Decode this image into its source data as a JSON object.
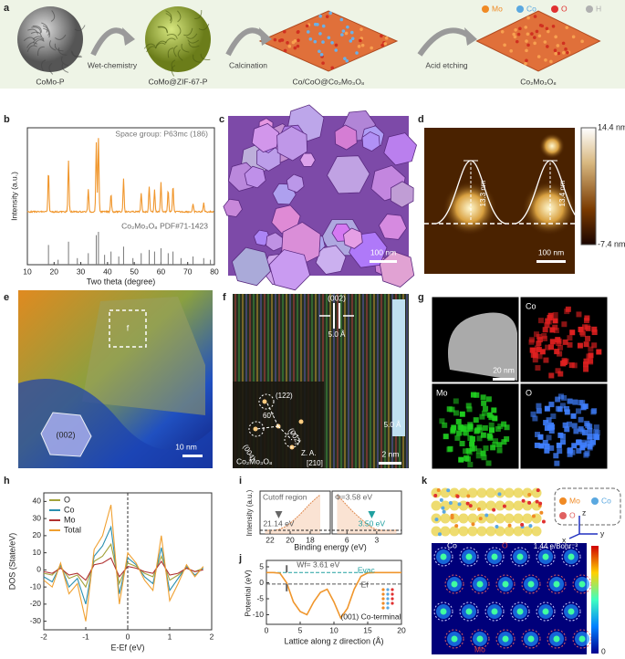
{
  "a": {
    "letter": "a",
    "steps": [
      "CoMo-P",
      "CoMo@ZIF-67-P",
      "Co/CoO@Co₂Mo₃O₈",
      "Co₂Mo₃O₈"
    ],
    "arrows": [
      "Wet-chemistry",
      "Calcination",
      "Acid etching"
    ],
    "legend": [
      {
        "name": "Mo",
        "color": "#f08a24"
      },
      {
        "name": "Co",
        "color": "#5aa8e0"
      },
      {
        "name": "O",
        "color": "#e03030"
      },
      {
        "name": "H",
        "color": "#b0b0b0"
      }
    ]
  },
  "b": {
    "letter": "b",
    "type": "line",
    "annotation": "Space group: P63mc (186)",
    "reference_label": "Co₂Mo₃O₈ PDF#71-1423",
    "xlabel": "Two theta (degree)",
    "ylabel": "Intensity (a.u.)",
    "xlim": [
      10,
      80
    ],
    "xticks": [
      10,
      20,
      30,
      40,
      50,
      60,
      70,
      80
    ],
    "color": "#f0962c",
    "peaks": {
      "x": [
        17.9,
        25.4,
        32.8,
        35.8,
        36.6,
        41.3,
        46,
        52.6,
        55.6,
        57.6,
        60,
        62.7,
        64.5,
        72,
        76
      ],
      "values": [
        0.55,
        0.7,
        0.3,
        0.95,
        1,
        0.25,
        0.45,
        0.25,
        0.35,
        0.3,
        0.4,
        0.3,
        0.35,
        0.1,
        0.12
      ]
    },
    "reference": {
      "x": [
        17.9,
        21.5,
        25.4,
        28.7,
        32.8,
        35.8,
        36.6,
        38.9,
        41.3,
        44.2,
        46,
        49.5,
        52.6,
        55.6,
        57.6,
        60,
        62.7,
        64.5,
        67.5,
        72,
        76,
        78.5
      ],
      "values": [
        0.6,
        0.15,
        0.7,
        0.2,
        0.35,
        0.9,
        1,
        0.3,
        0.4,
        0.25,
        0.55,
        0.2,
        0.35,
        0.45,
        0.4,
        0.5,
        0.35,
        0.4,
        0.2,
        0.25,
        0.2,
        0.15
      ]
    }
  },
  "c": {
    "letter": "c",
    "scale_bar": "100 nm"
  },
  "d": {
    "letter": "d",
    "scale_bar": "100 nm",
    "colorbar": {
      "max": "14.4 nm",
      "min": "-7.4 nm"
    },
    "heights": [
      "13.3 nm",
      "13.4 nm"
    ]
  },
  "e": {
    "letter": "e",
    "box": "f",
    "facet": "(002)",
    "scale_bar": "10 nm"
  },
  "f": {
    "letter": "f",
    "plane": "(002)",
    "spacing": "5.0 Å",
    "fft": [
      "(122)",
      "60°",
      "(004)",
      "(002)"
    ],
    "phase": "Co₂Mo₃O₈",
    "zone_axis": "Z. A.",
    "zone": "[210]",
    "spacing2": "5.0 Å",
    "scale_bar": "2 nm"
  },
  "g": {
    "letter": "g",
    "maps": [
      "Co",
      "Mo",
      "O"
    ],
    "scale_bar": "20 nm"
  },
  "h": {
    "letter": "h",
    "type": "line",
    "xlabel": "E-Ef (eV)",
    "ylabel": "DOS (State/eV)",
    "x": [
      -2,
      -1.8,
      -1.6,
      -1.4,
      -1.2,
      -1,
      -0.8,
      -0.6,
      -0.4,
      -0.2,
      0,
      0.2,
      0.4,
      0.6,
      0.8,
      1,
      1.2,
      1.4,
      1.6,
      1.8
    ],
    "xlim": [
      -2,
      2
    ],
    "ylim": [
      -35,
      45
    ],
    "xticks": [
      -2,
      -1,
      0,
      1,
      2
    ],
    "yticks": [
      -30,
      -20,
      -10,
      0,
      10,
      20,
      30,
      40
    ],
    "series": [
      {
        "name": "O",
        "color": "#a3a33a",
        "values": [
          -2,
          -3,
          2,
          -5,
          -3,
          -10,
          5,
          8,
          15,
          -8,
          4,
          2,
          -2,
          -4,
          8,
          -6,
          -3,
          1,
          -1,
          1
        ]
      },
      {
        "name": "Co",
        "color": "#2a8fb0",
        "values": [
          -4,
          -7,
          3,
          -10,
          -5,
          -20,
          8,
          14,
          25,
          -14,
          7,
          3,
          -4,
          -8,
          13,
          -12,
          -5,
          2,
          -3,
          1
        ]
      },
      {
        "name": "Mo",
        "color": "#b03030",
        "values": [
          -1,
          -2,
          1,
          -3,
          -2,
          -6,
          3,
          4,
          7,
          -4,
          2,
          1,
          -1,
          -2,
          5,
          -3,
          -2,
          1,
          -1,
          0
        ]
      },
      {
        "name": "Total",
        "color": "#f0a030",
        "values": [
          -6,
          -10,
          4,
          -14,
          -8,
          -30,
          12,
          20,
          38,
          -20,
          10,
          4,
          -6,
          -12,
          20,
          -18,
          -8,
          3,
          -4,
          2
        ]
      }
    ]
  },
  "i": {
    "letter": "i",
    "ylabel": "Intensity (a.u.)",
    "xlabel": "Binding energy (eV)",
    "left": {
      "title": "Cutoff region",
      "xlim": [
        23,
        16
      ],
      "xticks": [
        22,
        20,
        18
      ],
      "x": [
        22.5,
        22,
        21.5,
        21.14,
        20.5,
        20,
        19.5,
        19,
        18.5,
        18,
        17.5,
        17
      ],
      "values": [
        0,
        0,
        0,
        0.02,
        0.1,
        0.2,
        0.32,
        0.45,
        0.6,
        0.75,
        0.88,
        1
      ],
      "edge": "21.14 eV"
    },
    "right": {
      "title": "Φ=3.58 eV",
      "xlim": [
        7.5,
        0.5
      ],
      "xticks": [
        6,
        3
      ],
      "x": [
        7,
        6.5,
        6,
        5.5,
        5,
        4.5,
        4,
        3.5,
        3,
        2.5,
        2,
        1.5,
        1
      ],
      "values": [
        1,
        0.85,
        0.7,
        0.55,
        0.42,
        0.3,
        0.18,
        0.08,
        0.02,
        0,
        0,
        0,
        0
      ],
      "edge": "3.50 eV"
    }
  },
  "j": {
    "letter": "j",
    "xlabel": "Lattice along z direction (Å)",
    "ylabel": "Potential (eV)",
    "xlim": [
      0,
      20
    ],
    "ylim": [
      -13,
      7
    ],
    "xticks": [
      0,
      5,
      10,
      15,
      20
    ],
    "yticks": [
      -10,
      -5,
      0,
      5
    ],
    "x": [
      0,
      1,
      2,
      3,
      4,
      5,
      6,
      7,
      8,
      9,
      10,
      11,
      12,
      13,
      14,
      15,
      16,
      17,
      18,
      19,
      20
    ],
    "values": [
      3.2,
      3.2,
      3,
      0,
      -6,
      -9,
      -10,
      -6,
      -3,
      -2,
      -6,
      -11,
      -8,
      -2,
      2,
      3.1,
      3.2,
      3.2,
      3.2,
      3.2,
      3.2
    ],
    "evac_level": 3.2,
    "ef_level": -0.4,
    "wf": "Wf= 3.61 eV",
    "evac": "Evac",
    "ef": "Ef",
    "surface": "(001) Co-terminal"
  },
  "k": {
    "letter": "k",
    "legend": [
      "Mo",
      "Co",
      "O"
    ],
    "axes": [
      "x",
      "y",
      "z"
    ],
    "colorbar": {
      "max": "1.44 e/Bohr⁻³",
      "min": "0"
    },
    "sites": [
      "Co",
      "O",
      "Mo"
    ]
  }
}
